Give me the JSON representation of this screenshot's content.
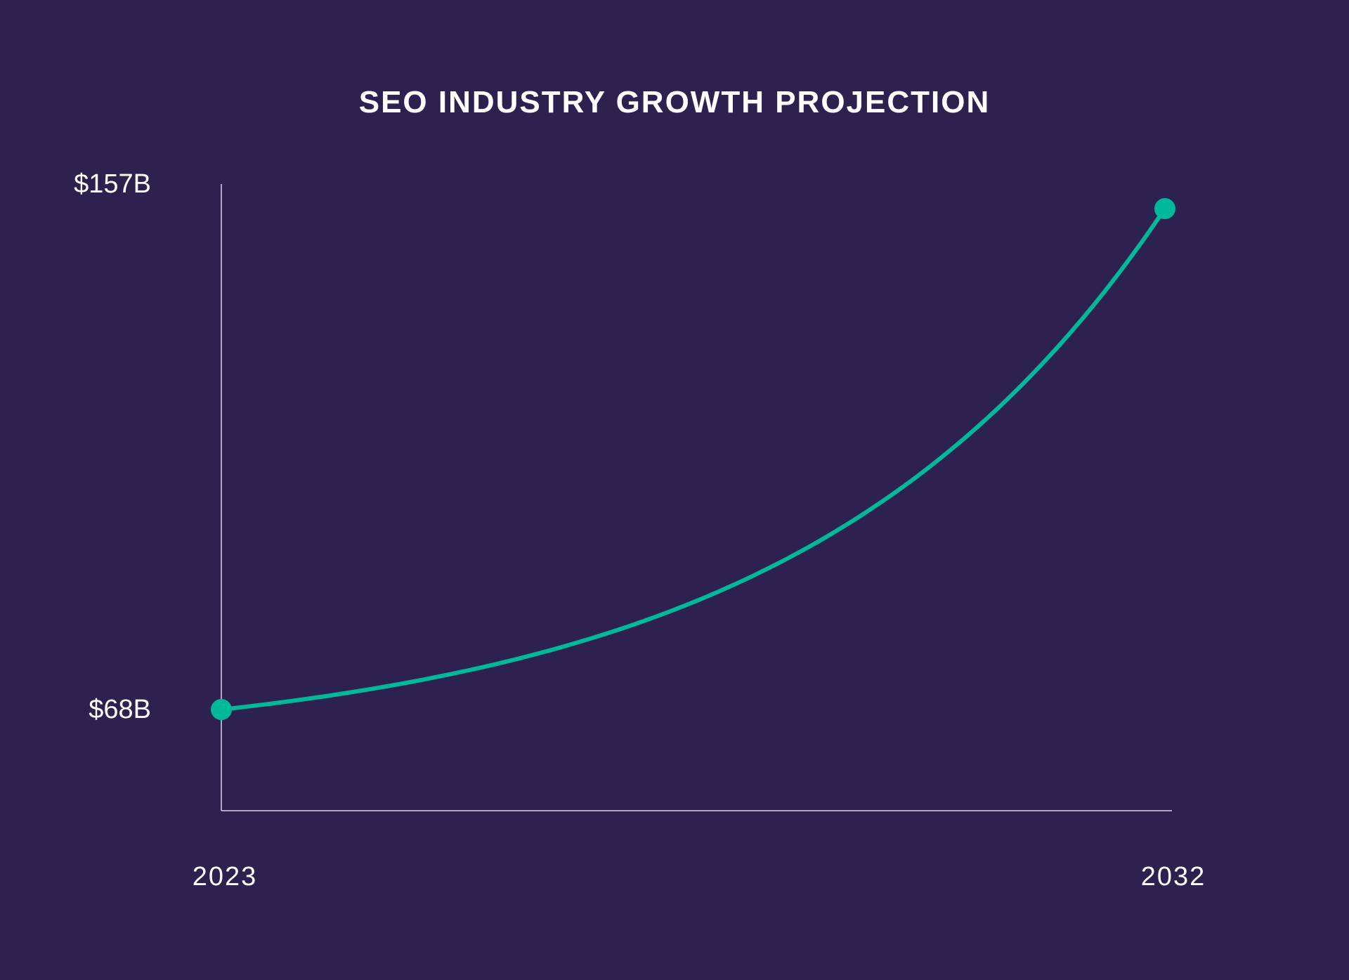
{
  "colors": {
    "background": "#2d224f",
    "line": "#00b89a",
    "axis": "#d8d4e6",
    "text": "#ffffff"
  },
  "chart_data": {
    "type": "line",
    "title": "SEO INDUSTRY GROWTH PROJECTION",
    "xlabel": "",
    "ylabel": "",
    "x": [
      2023,
      2032
    ],
    "y_tick_labels": [
      "$157B",
      "$68B"
    ],
    "x_tick_labels": [
      "2023",
      "2032"
    ],
    "series": [
      {
        "values": [
          68,
          157
        ],
        "curve": "exponential",
        "markers": "endpoints"
      }
    ],
    "ylim": [
      68,
      157
    ],
    "grid": false,
    "legend": "none"
  }
}
